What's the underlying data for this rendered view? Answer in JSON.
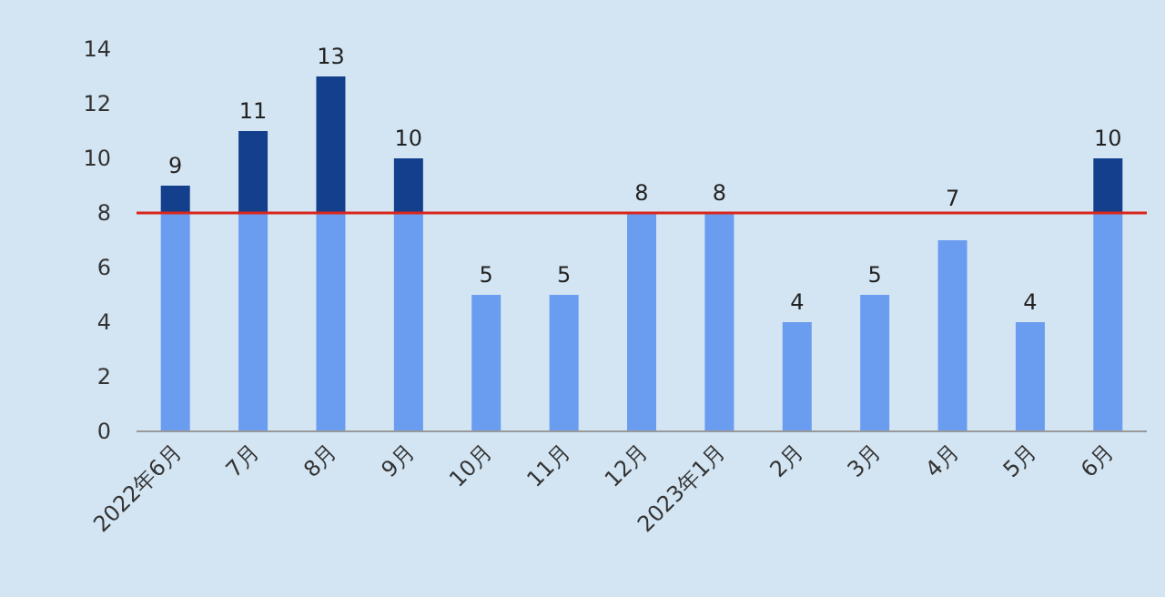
{
  "chart_data": {
    "type": "bar",
    "stacked": true,
    "categories": [
      "2022年6月",
      "7月",
      "8月",
      "9月",
      "10月",
      "11月",
      "12月",
      "2023年1月",
      "2月",
      "3月",
      "4月",
      "5月",
      "6月"
    ],
    "series": [
      {
        "color": "#6a9cf0",
        "values": [
          8,
          8,
          8,
          8,
          5,
          5,
          8,
          8,
          4,
          5,
          7,
          4,
          8
        ]
      },
      {
        "color": "#143f8c",
        "values": [
          1,
          3,
          5,
          2,
          null,
          null,
          null,
          null,
          null,
          null,
          null,
          null,
          2
        ]
      }
    ],
    "totals": [
      "9",
      "11",
      "13",
      "10",
      "5",
      "5",
      "8",
      "8",
      "4",
      "5",
      "7",
      "4",
      "10"
    ],
    "ylim": [
      0,
      14
    ],
    "yticks": [
      0,
      2,
      4,
      6,
      8,
      10,
      12,
      14
    ],
    "ref_lines": [
      {
        "axis": "y",
        "value": 8,
        "color": "#d9261c"
      }
    ],
    "grid": false
  }
}
